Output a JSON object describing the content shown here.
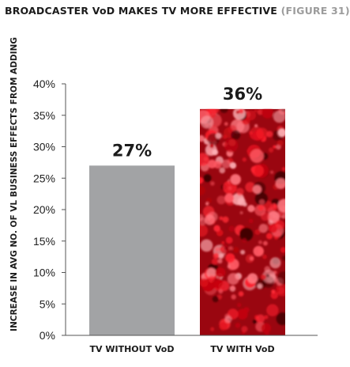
{
  "chart_data": {
    "type": "bar",
    "title": "BROADCASTER VoD MAKES TV MORE EFFECTIVE",
    "subtitle": "(FIGURE 31)",
    "ylabel": "INCREASE IN AVG NO. OF VL BUSINESS EFFECTS FROM ADDING",
    "xlabel": "",
    "categories": [
      "TV WITHOUT VoD",
      "TV WITH VoD"
    ],
    "values": [
      27,
      36
    ],
    "data_labels": [
      "27%",
      "36%"
    ],
    "ylim": [
      0,
      40
    ],
    "yticks": [
      "0%",
      "5%",
      "10%",
      "15%",
      "20%",
      "25%",
      "30%",
      "35%",
      "40%"
    ],
    "grid": false,
    "legend": "none",
    "colors": {
      "bar_without": "#a2a3a5",
      "bar_with_base": "#9a0610",
      "bar_with_highlight": "#ff4a55",
      "axis": "#555555",
      "figure_label": "#9c9c9c"
    }
  }
}
